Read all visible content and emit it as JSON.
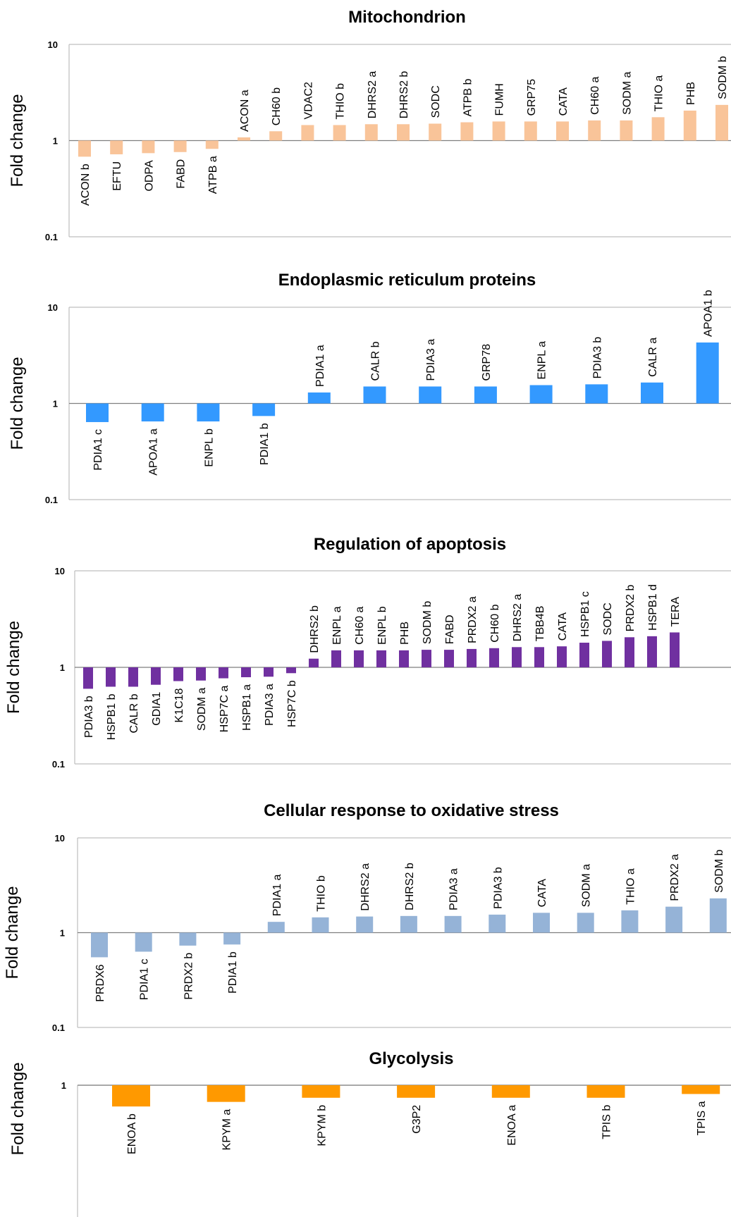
{
  "chart_data": [
    {
      "type": "bar",
      "title": "Mitochondrion",
      "ylabel": "Fold change",
      "yscale": "log",
      "ylim": [
        0.1,
        10
      ],
      "yticks": [
        "10",
        "1",
        "0.1"
      ],
      "color": "#f9c499",
      "categories": [
        "ACON b",
        "EFTU",
        "ODPA",
        "FABD",
        "ATPB a",
        "ACON a",
        "CH60 b",
        "VDAC2",
        "THIO b",
        "DHRS2 a",
        "DHRS2 b",
        "SODC",
        "ATPB b",
        "FUMH",
        "GRP75",
        "CATA",
        "CH60 a",
        "SODM a",
        "THIO a",
        "PHB",
        "SODM b"
      ],
      "values": [
        0.68,
        0.72,
        0.74,
        0.76,
        0.82,
        1.08,
        1.25,
        1.45,
        1.45,
        1.48,
        1.48,
        1.5,
        1.55,
        1.58,
        1.58,
        1.58,
        1.62,
        1.62,
        1.75,
        2.05,
        2.35
      ]
    },
    {
      "type": "bar",
      "title": "Endoplasmic reticulum proteins",
      "ylabel": "Fold change",
      "yscale": "log",
      "ylim": [
        0.1,
        10
      ],
      "yticks": [
        "10",
        "1",
        "0.1"
      ],
      "color": "#3399ff",
      "categories": [
        "PDIA1 c",
        "APOA1 a",
        "ENPL b",
        "PDIA1 b",
        "PDIA1 a",
        "CALR b",
        "PDIA3 a",
        "GRP78",
        "ENPL a",
        "PDIA3 b",
        "CALR a",
        "APOA1 b"
      ],
      "values": [
        0.64,
        0.65,
        0.65,
        0.74,
        1.3,
        1.5,
        1.5,
        1.5,
        1.55,
        1.58,
        1.65,
        4.3
      ]
    },
    {
      "type": "bar",
      "title": "Regulation of apoptosis",
      "ylabel": "Fold change",
      "yscale": "log",
      "ylim": [
        0.1,
        10
      ],
      "yticks": [
        "10",
        "1",
        "0.1"
      ],
      "color": "#7030a0",
      "categories": [
        "PDIA3 b",
        "HSPB1 b",
        "CALR b",
        "GDIA1",
        "K1C18",
        "SODM a",
        "HSP7C a",
        "HSPB1 a",
        "PDIA3 a",
        "HSP7C b",
        "DHRS2 b",
        "ENPL a",
        "CH60 a",
        "ENPL b",
        "PHB",
        "SODM b",
        "FABD",
        "PRDX2 a",
        "CH60 b",
        "DHRS2 a",
        "TBB4B",
        "CATA",
        "HSPB1 c",
        "SODC",
        "PRDX2 b",
        "HSPB1 d",
        "TERA"
      ],
      "values": [
        0.6,
        0.63,
        0.63,
        0.66,
        0.72,
        0.73,
        0.77,
        0.79,
        0.8,
        0.87,
        1.23,
        1.5,
        1.5,
        1.5,
        1.5,
        1.52,
        1.52,
        1.55,
        1.58,
        1.62,
        1.62,
        1.65,
        1.8,
        1.88,
        2.05,
        2.1,
        2.3
      ]
    },
    {
      "type": "bar",
      "title": "Cellular response to oxidative stress",
      "ylabel": "Fold change",
      "yscale": "log",
      "ylim": [
        0.1,
        10
      ],
      "yticks": [
        "10",
        "1",
        "0.1"
      ],
      "color": "#95b3d7",
      "categories": [
        "PRDX6",
        "PDIA1 c",
        "PRDX2 b",
        "PDIA1 b",
        "PDIA1 a",
        "THIO b",
        "DHRS2 a",
        "DHRS2 b",
        "PDIA3 a",
        "PDIA3 b",
        "CATA",
        "SODM a",
        "THIO a",
        "PRDX2 a",
        "SODM b"
      ],
      "values": [
        0.55,
        0.63,
        0.73,
        0.75,
        1.3,
        1.45,
        1.48,
        1.5,
        1.5,
        1.55,
        1.62,
        1.62,
        1.72,
        1.88,
        2.3
      ]
    },
    {
      "type": "bar",
      "title": "Glycolysis",
      "ylabel": "Fold change",
      "yscale": "log",
      "ylim": [
        0.1,
        1
      ],
      "yticks": [
        "1"
      ],
      "color": "#ff9900",
      "categories": [
        "ENOA b",
        "KPYM a",
        "KPYM b",
        "G3P2",
        "ENOA a",
        "TPIS b",
        "TPIS a"
      ],
      "values": [
        0.6,
        0.67,
        0.74,
        0.74,
        0.74,
        0.74,
        0.81
      ]
    }
  ]
}
